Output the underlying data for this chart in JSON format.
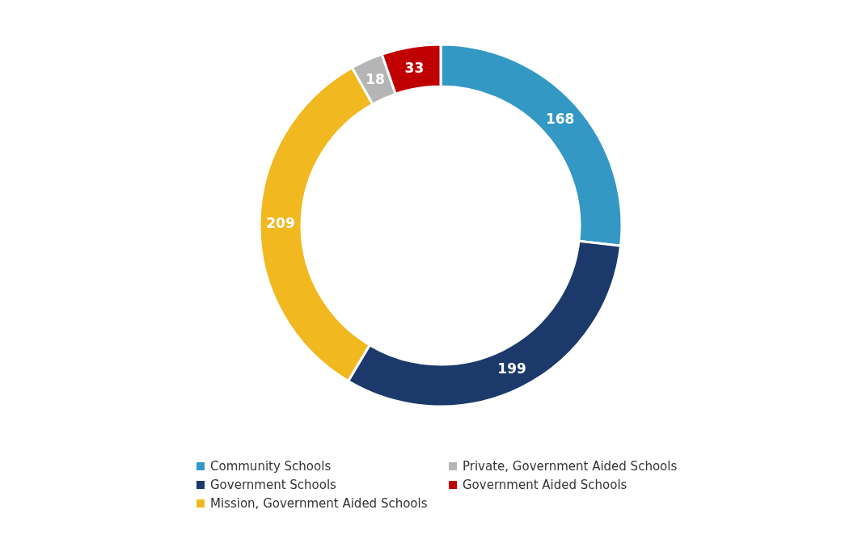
{
  "chart_data": {
    "type": "donut",
    "categories": [
      "Community Schools",
      "Government Schools",
      "Mission, Government Aided Schools",
      "Private, Government Aided Schools",
      "Government Aided Schools"
    ],
    "values": [
      168,
      199,
      209,
      18,
      33
    ],
    "colors": [
      "#3498c4",
      "#1b3a6b",
      "#f2b81f",
      "#b5b5b5",
      "#c00000"
    ],
    "data_labels": true,
    "legend": "bottom"
  }
}
